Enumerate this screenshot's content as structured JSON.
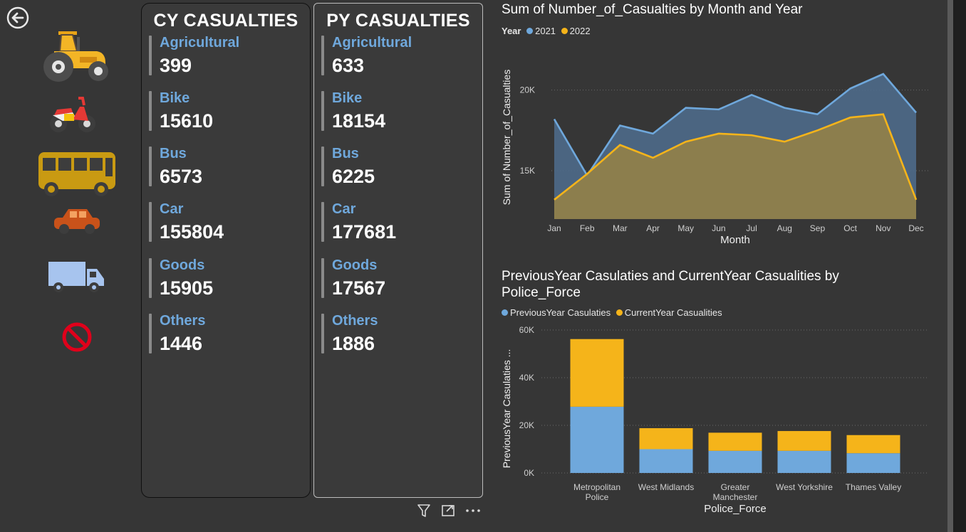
{
  "colors": {
    "blue": "#6fa8dc",
    "orange": "#f5b41a",
    "bg": "#363636"
  },
  "cy_panel": {
    "title": "CY CASUALTIES",
    "items": [
      {
        "label": "Agricultural",
        "value": "399"
      },
      {
        "label": "Bike",
        "value": "15610"
      },
      {
        "label": "Bus",
        "value": "6573"
      },
      {
        "label": "Car",
        "value": "155804"
      },
      {
        "label": "Goods",
        "value": "15905"
      },
      {
        "label": "Others",
        "value": "1446"
      }
    ]
  },
  "py_panel": {
    "title": "PY CASUALTIES",
    "items": [
      {
        "label": "Agricultural",
        "value": "633"
      },
      {
        "label": "Bike",
        "value": "18154"
      },
      {
        "label": "Bus",
        "value": "6225"
      },
      {
        "label": "Car",
        "value": "177681"
      },
      {
        "label": "Goods",
        "value": "17567"
      },
      {
        "label": "Others",
        "value": "1886"
      }
    ]
  },
  "vehicle_icons": [
    "tractor-icon",
    "motorbike-icon",
    "bus-icon",
    "car-icon",
    "truck-icon",
    "no-entry-icon"
  ],
  "chart_data": [
    {
      "type": "area",
      "title": "Sum of Number_of_Casualties by Month and Year",
      "legend_title": "Year",
      "xlabel": "Month",
      "ylabel": "Sum of Number_of_Casualties",
      "categories": [
        "Jan",
        "Feb",
        "Mar",
        "Apr",
        "May",
        "Jun",
        "Jul",
        "Aug",
        "Sep",
        "Oct",
        "Nov",
        "Dec"
      ],
      "ylim": [
        12000,
        22500
      ],
      "yticks": [
        {
          "value": 15000,
          "label": "15K"
        },
        {
          "value": 20000,
          "label": "20K"
        }
      ],
      "series": [
        {
          "name": "2021",
          "color": "#6fa8dc",
          "values": [
            18200,
            14700,
            17800,
            17300,
            18900,
            18800,
            19700,
            18900,
            18500,
            20100,
            21000,
            18600
          ]
        },
        {
          "name": "2022",
          "color": "#f5b41a",
          "values": [
            13200,
            14800,
            16600,
            15800,
            16800,
            17300,
            17200,
            16800,
            17500,
            18300,
            18500,
            13200
          ]
        }
      ]
    },
    {
      "type": "bar",
      "stacked": true,
      "title_lines": [
        "PreviousYear Casulaties and CurrentYear Casualities by",
        "Police_Force"
      ],
      "xlabel": "Police_Force",
      "ylabel": "PreviousYear Casulaties ...",
      "categories": [
        [
          "Metropolitan",
          "Police"
        ],
        [
          "West Midlands"
        ],
        [
          "Greater",
          "Manchester"
        ],
        [
          "West Yorkshire"
        ],
        [
          "Thames Valley"
        ]
      ],
      "ylim": [
        0,
        60000
      ],
      "yticks": [
        {
          "value": 0,
          "label": "0K"
        },
        {
          "value": 20000,
          "label": "20K"
        },
        {
          "value": 40000,
          "label": "40K"
        },
        {
          "value": 60000,
          "label": "60K"
        }
      ],
      "series": [
        {
          "name": "PreviousYear Casulaties",
          "color": "#6fa8dc",
          "values": [
            27800,
            10000,
            9300,
            9300,
            8300
          ]
        },
        {
          "name": "CurrentYear Casualities",
          "color": "#f5b41a",
          "values": [
            28400,
            8800,
            7600,
            8300,
            7600
          ]
        }
      ]
    }
  ]
}
